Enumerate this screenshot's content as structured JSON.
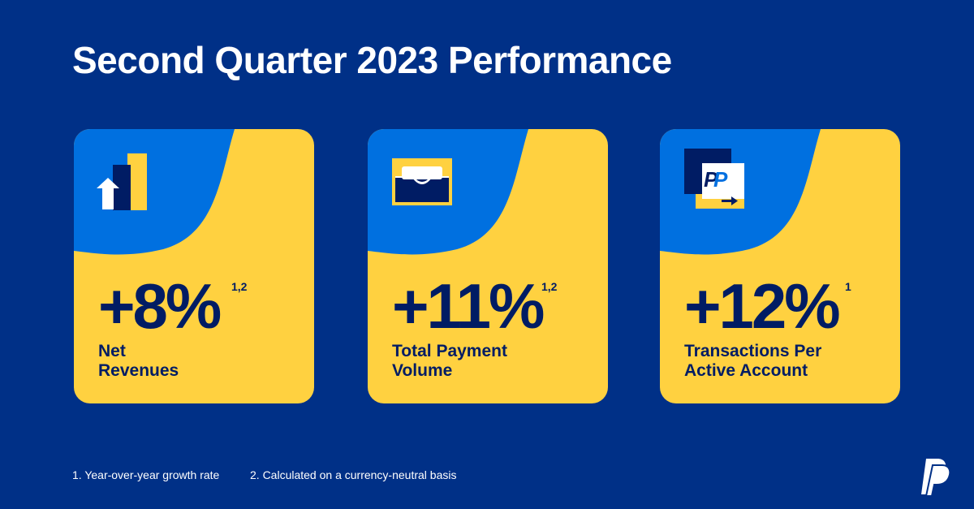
{
  "title": "Second Quarter 2023 Performance",
  "colors": {
    "background": "#003087",
    "card_yellow": "#ffd140",
    "card_blue": "#0070e0",
    "text_dark": "#001c64"
  },
  "cards": [
    {
      "value": "+8%",
      "footnote_ref": "1,2",
      "label_line1": "Net",
      "label_line2": "Revenues",
      "icon": "bar-chart-arrow-up-icon"
    },
    {
      "value": "+11%",
      "footnote_ref": "1,2",
      "label_line1": "Total Payment",
      "label_line2": "Volume",
      "icon": "wallet-icon"
    },
    {
      "value": "+12%",
      "footnote_ref": "1",
      "label_line1": "Transactions Per",
      "label_line2": "Active Account",
      "icon": "paypal-card-arrow-icon"
    }
  ],
  "footnotes": [
    "1.  Year-over-year growth rate",
    "2.  Calculated on a currency-neutral basis"
  ],
  "logo": "paypal-logo-icon"
}
